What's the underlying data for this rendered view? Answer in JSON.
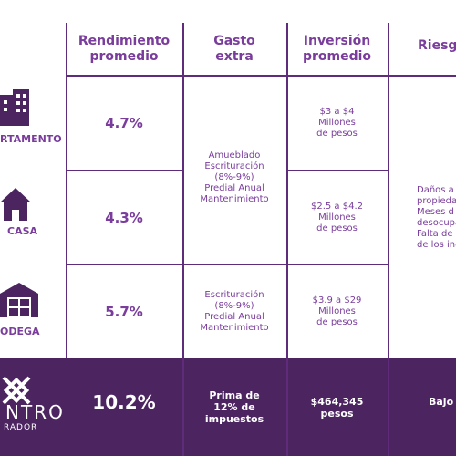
{
  "header": {
    "columns": [
      [
        "Rendimiento",
        "promedio"
      ],
      [
        "Gasto",
        "extra"
      ],
      [
        "Inversión",
        "promedio"
      ],
      [
        "Riesgo"
      ]
    ]
  },
  "rows": [
    {
      "label": "RTAMENTO",
      "rendimiento": "4.7%",
      "inversion": [
        "$3 a $4",
        "Millones",
        "de pesos"
      ]
    },
    {
      "label": "CASA",
      "rendimiento": "4.3%",
      "inversion": [
        "$2.5 a $4.2",
        "Millones",
        "de pesos"
      ]
    },
    {
      "label": "ODEGA",
      "rendimiento": "5.7%",
      "inversion": [
        "$3.9 a $29",
        "Millones",
        "de pesos"
      ]
    }
  ],
  "gasto_extra": [
    [
      "Amueblado",
      "Escrituración",
      "(8%-9%)",
      "Predial Anual",
      "Mantenimiento"
    ],
    [
      "Escrituración",
      "(8%-9%)",
      "Predial Anual",
      "Mantenimiento"
    ]
  ],
  "riesgo": [
    "Daños a",
    "propieda",
    "Meses d",
    "desocupac",
    "Falta de pa",
    "de los inqui"
  ],
  "footer": {
    "brand": [
      "NTRO",
      "RADOR"
    ],
    "rendimiento": "10.2%",
    "gasto": [
      "Prima de",
      "12% de",
      "impuestos"
    ],
    "inversion": [
      "$464,345",
      "pesos"
    ],
    "riesgo": "Bajo"
  }
}
